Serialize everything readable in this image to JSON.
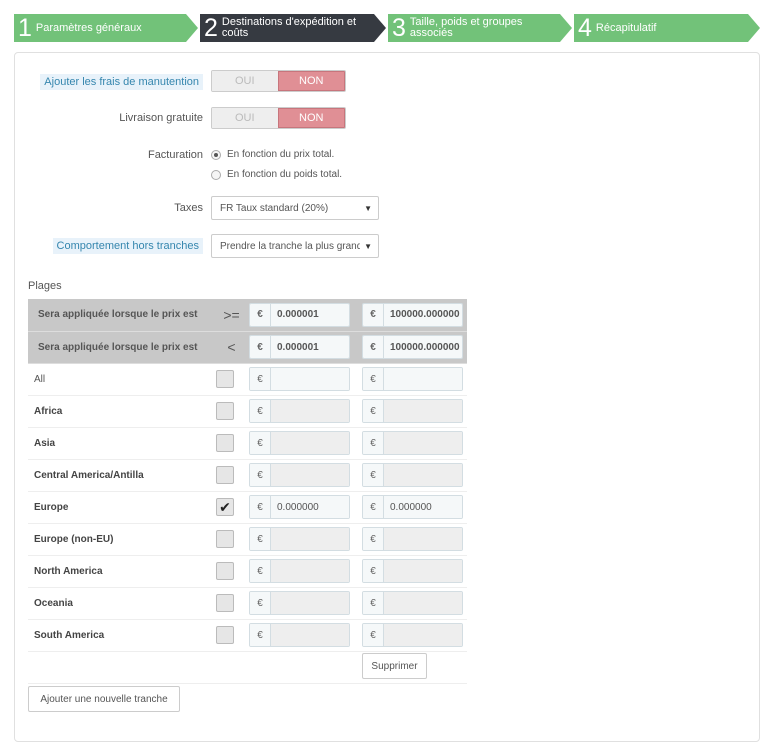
{
  "steps": [
    {
      "num": "1",
      "label": "Paramètres généraux",
      "active": false
    },
    {
      "num": "2",
      "label": "Destinations d'expédition et coûts",
      "active": true
    },
    {
      "num": "3",
      "label": "Taille, poids et groupes associés",
      "active": false
    },
    {
      "num": "4",
      "label": "Récapitulatif",
      "active": false
    }
  ],
  "form": {
    "handling": {
      "label": "Ajouter les frais de manutention",
      "yes": "OUI",
      "no": "NON",
      "value": "NON"
    },
    "free": {
      "label": "Livraison gratuite",
      "yes": "OUI",
      "no": "NON",
      "value": "NON"
    },
    "billing": {
      "label": "Facturation",
      "options": [
        "En fonction du prix total.",
        "En fonction du poids total."
      ],
      "selected": 0
    },
    "taxes": {
      "label": "Taxes",
      "value": "FR Taux standard (20%)"
    },
    "outrange": {
      "label": "Comportement hors tranches",
      "value": "Prendre la tranche la plus grande"
    }
  },
  "plages": {
    "title": "Plages",
    "currency": "€",
    "header_rows": [
      {
        "label": "Sera appliquée lorsque le prix est",
        "op": ">=",
        "v1": "0.000001",
        "v2": "100000.000000"
      },
      {
        "label": "Sera appliquée lorsque le prix est",
        "op": "<",
        "v1": "0.000001",
        "v2": "100000.000000"
      }
    ],
    "zones": [
      {
        "name": "All",
        "checked": false,
        "v1": "",
        "v2": "",
        "bold": false
      },
      {
        "name": "Africa",
        "checked": false,
        "v1": "",
        "v2": "",
        "bold": true
      },
      {
        "name": "Asia",
        "checked": false,
        "v1": "",
        "v2": "",
        "bold": true
      },
      {
        "name": "Central America/Antilla",
        "checked": false,
        "v1": "",
        "v2": "",
        "bold": true
      },
      {
        "name": "Europe",
        "checked": true,
        "v1": "0.000000",
        "v2": "0.000000",
        "bold": true
      },
      {
        "name": "Europe (non-EU)",
        "checked": false,
        "v1": "",
        "v2": "",
        "bold": true
      },
      {
        "name": "North America",
        "checked": false,
        "v1": "",
        "v2": "",
        "bold": true
      },
      {
        "name": "Oceania",
        "checked": false,
        "v1": "",
        "v2": "",
        "bold": true
      },
      {
        "name": "South America",
        "checked": false,
        "v1": "",
        "v2": "",
        "bold": true
      }
    ],
    "delete_label": "Supprimer",
    "add_label": "Ajouter une nouvelle tranche"
  }
}
